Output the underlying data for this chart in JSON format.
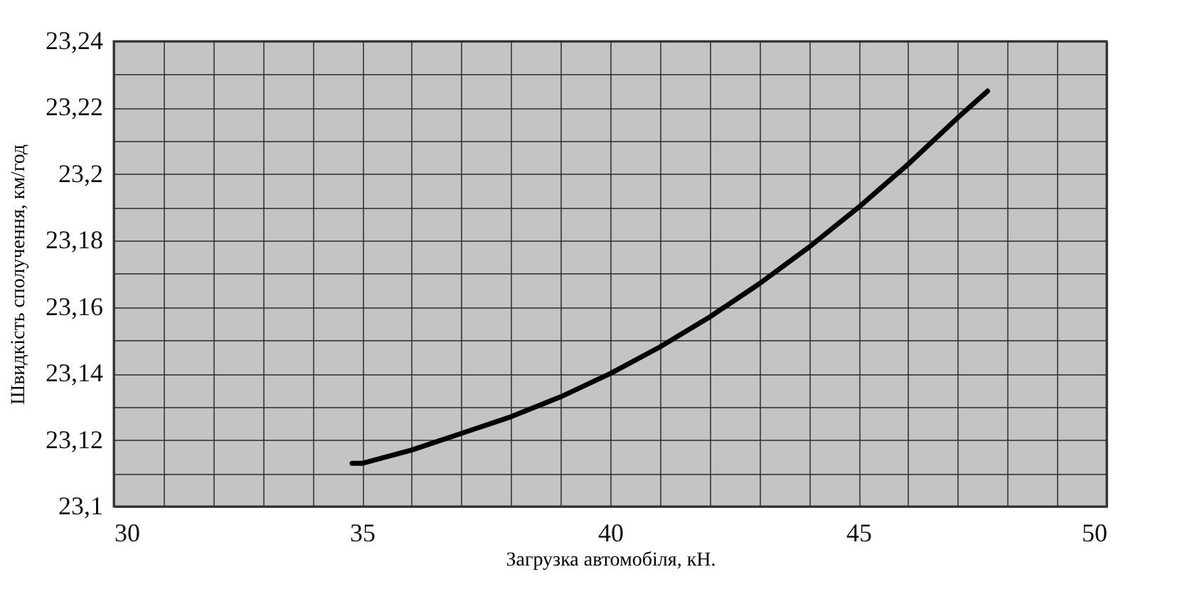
{
  "chart_data": {
    "type": "line",
    "xlabel": "Загрузка автомобіля, кН.",
    "ylabel": "Швидкість сполучення, км/год",
    "x": [
      34.8,
      35,
      36,
      37,
      38,
      39,
      40,
      41,
      42,
      43,
      44,
      45,
      46,
      47,
      47.6
    ],
    "series": [
      {
        "color": "#000000",
        "values": [
          23.113,
          23.113,
          23.117,
          23.122,
          23.127,
          23.133,
          23.14,
          23.148,
          23.157,
          23.167,
          23.178,
          23.19,
          23.203,
          23.217,
          23.225
        ]
      }
    ],
    "xlim": [
      30,
      50
    ],
    "xticks": [
      30,
      {
        "value": 31,
        "label": null
      },
      {
        "value": 32,
        "label": null
      },
      {
        "value": 33,
        "label": null
      },
      {
        "value": 34,
        "label": null
      },
      35,
      {
        "value": 36,
        "label": null
      },
      {
        "value": 37,
        "label": null
      },
      {
        "value": 38,
        "label": null
      },
      {
        "value": 39,
        "label": null
      },
      40,
      {
        "value": 41,
        "label": null
      },
      {
        "value": 42,
        "label": null
      },
      {
        "value": 43,
        "label": null
      },
      {
        "value": 44,
        "label": null
      },
      45,
      {
        "value": 46,
        "label": null
      },
      {
        "value": 47,
        "label": null
      },
      {
        "value": 48,
        "label": null
      },
      {
        "value": 49,
        "label": null
      },
      50
    ],
    "ylim": [
      23.1,
      23.24
    ],
    "yticks": [
      {
        "value": 23.1,
        "label": "23,1"
      },
      {
        "value": 23.11,
        "label": null
      },
      {
        "value": 23.12,
        "label": "23,12"
      },
      {
        "value": 23.13,
        "label": null
      },
      {
        "value": 23.14,
        "label": "23,14"
      },
      {
        "value": 23.15,
        "label": null
      },
      {
        "value": 23.16,
        "label": "23,16"
      },
      {
        "value": 23.17,
        "label": null
      },
      {
        "value": 23.18,
        "label": "23,18"
      },
      {
        "value": 23.19,
        "label": null
      },
      {
        "value": 23.2,
        "label": "23,2"
      },
      {
        "value": 23.21,
        "label": null
      },
      {
        "value": 23.22,
        "label": "23,22"
      },
      {
        "value": 23.23,
        "label": null
      },
      {
        "value": 23.24,
        "label": "23,24"
      }
    ],
    "grid": true,
    "line_style": "solid"
  }
}
